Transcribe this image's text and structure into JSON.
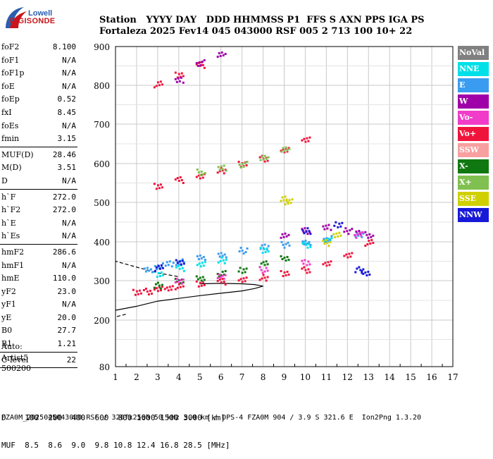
{
  "logo": {
    "brand_top": "Lowell",
    "brand_bottom": "DIGISONDE",
    "colors": {
      "blue": "#2b5fae",
      "red": "#c9141b"
    }
  },
  "header": {
    "labels": "Station   YYYY DAY   DDD HHMMSS P1  FFS S AXN PPS IGA PS",
    "values": "Fortaleza 2025 Fev14 045 043000 RSF 005 2 713 100 10+ 22"
  },
  "params": [
    {
      "name": "foF2",
      "value": "8.100"
    },
    {
      "name": "foF1",
      "value": "N/A"
    },
    {
      "name": "foF1p",
      "value": "N/A"
    },
    {
      "name": "foE",
      "value": "N/A"
    },
    {
      "name": "foEp",
      "value": "0.52"
    },
    {
      "name": "fxI",
      "value": "8.45"
    },
    {
      "name": "foEs",
      "value": "N/A"
    },
    {
      "name": "fmin",
      "value": "3.15"
    },
    {
      "sep": true
    },
    {
      "name": "MUF(D)",
      "value": "28.46"
    },
    {
      "name": "M(D)",
      "value": "3.51"
    },
    {
      "name": "D",
      "value": "N/A"
    },
    {
      "sep": true
    },
    {
      "name": "h`F",
      "value": "272.0"
    },
    {
      "name": "h`F2",
      "value": "272.0"
    },
    {
      "name": "h`E",
      "value": "N/A"
    },
    {
      "name": "h`Es",
      "value": "N/A"
    },
    {
      "sep": true
    },
    {
      "name": "hmF2",
      "value": "286.6"
    },
    {
      "name": "hmF1",
      "value": "N/A"
    },
    {
      "name": "hmE",
      "value": "110.0"
    },
    {
      "name": "yF2",
      "value": "23.0"
    },
    {
      "name": "yF1",
      "value": "N/A"
    },
    {
      "name": "yE",
      "value": "20.0"
    },
    {
      "name": "B0",
      "value": "27.7"
    },
    {
      "name": "B1",
      "value": "1.21"
    },
    {
      "sep": true
    },
    {
      "name": "C-level",
      "value": "22"
    },
    {
      "sep": true
    }
  ],
  "autoscaling": {
    "line1": "Auto:",
    "line2": "Artist5",
    "line3": "500200"
  },
  "legend": [
    {
      "label": "NoVal",
      "color": "#808080"
    },
    {
      "label": "NNE",
      "color": "#00e0e8"
    },
    {
      "label": "E",
      "color": "#3a9cf0"
    },
    {
      "label": "W",
      "color": "#a000a8"
    },
    {
      "label": "Vo-",
      "color": "#f03cc8"
    },
    {
      "label": "Vo+",
      "color": "#f0143c"
    },
    {
      "label": "SSW",
      "color": "#f8a0a0"
    },
    {
      "label": "X-",
      "color": "#107810"
    },
    {
      "label": "X+",
      "color": "#80c050"
    },
    {
      "label": "SSE",
      "color": "#d0d000"
    },
    {
      "label": "NNW",
      "color": "#1818d8"
    }
  ],
  "muf_table": {
    "line1": "D    100  200  400  600  800 1000 1500 3000 [km]",
    "line2": "MUF  8.5  8.6  9.0  9.8 10.8 12.4 16.8 28.5 [MHz]"
  },
  "footer": "FZA0M_2025045043000.RSF / 320fx256h 50 kHz 5.0 km / DPS-4 FZA0M 904 / 3.9 S 321.6 E  Ion2Png 1.3.20",
  "chart_data": {
    "type": "scatter",
    "x_ticks": [
      "1",
      "2",
      "3",
      "4",
      "5",
      "6",
      "7",
      "8",
      "9",
      "10",
      "11",
      "12",
      "13",
      "14",
      "15",
      "16",
      "17"
    ],
    "y_ticks": [
      "80",
      "200",
      "300",
      "400",
      "500",
      "600",
      "700",
      "800",
      "900"
    ],
    "xlim": [
      1,
      17
    ],
    "grid": true,
    "series": [
      {
        "color": "#f0143c",
        "points": [
          [
            2.0,
            272
          ],
          [
            2.5,
            275
          ],
          [
            3.0,
            280
          ],
          [
            3.5,
            285
          ],
          [
            4.0,
            288
          ],
          [
            5.0,
            295
          ],
          [
            6.0,
            300
          ],
          [
            7.0,
            305
          ],
          [
            8.0,
            310
          ],
          [
            9.0,
            320
          ],
          [
            10.0,
            330
          ],
          [
            11.0,
            345
          ],
          [
            12.0,
            370
          ],
          [
            13.0,
            400
          ],
          [
            3.0,
            545
          ],
          [
            4.0,
            560
          ],
          [
            5.0,
            570
          ],
          [
            6.0,
            585
          ],
          [
            7.0,
            600
          ],
          [
            8.0,
            615
          ],
          [
            9.0,
            635
          ],
          [
            10.0,
            665
          ],
          [
            3.0,
            805
          ],
          [
            4.0,
            830
          ],
          [
            5.0,
            855
          ]
        ]
      },
      {
        "color": "#3a9cf0",
        "points": [
          [
            2.5,
            330
          ],
          [
            3.0,
            340
          ],
          [
            3.5,
            345
          ],
          [
            4.0,
            350
          ],
          [
            5.0,
            360
          ],
          [
            6.0,
            370
          ],
          [
            7.0,
            380
          ],
          [
            8.0,
            390
          ],
          [
            9.0,
            395
          ],
          [
            10.0,
            400
          ],
          [
            11.0,
            410
          ],
          [
            12.5,
            420
          ]
        ]
      },
      {
        "color": "#00e0e8",
        "points": [
          [
            3.0,
            320
          ],
          [
            4.0,
            335
          ],
          [
            5.0,
            345
          ],
          [
            6.0,
            355
          ],
          [
            8.0,
            380
          ],
          [
            10.0,
            395
          ],
          [
            11.0,
            405
          ]
        ]
      },
      {
        "color": "#a000a8",
        "points": [
          [
            9.0,
            420
          ],
          [
            10.0,
            430
          ],
          [
            11.0,
            440
          ],
          [
            12.0,
            430
          ],
          [
            12.5,
            425
          ],
          [
            13.0,
            420
          ],
          [
            4.0,
            815
          ],
          [
            5.0,
            860
          ],
          [
            6.0,
            880
          ]
        ]
      },
      {
        "color": "#107810",
        "points": [
          [
            3.0,
            290
          ],
          [
            4.0,
            300
          ],
          [
            5.0,
            310
          ],
          [
            6.0,
            320
          ],
          [
            7.0,
            330
          ],
          [
            8.0,
            345
          ],
          [
            9.0,
            360
          ]
        ]
      },
      {
        "color": "#80c050",
        "points": [
          [
            5.0,
            580
          ],
          [
            6.0,
            590
          ],
          [
            7.0,
            600
          ],
          [
            8.0,
            615
          ],
          [
            9.0,
            640
          ]
        ]
      },
      {
        "color": "#1818d8",
        "points": [
          [
            3.0,
            335
          ],
          [
            4.0,
            350
          ],
          [
            10.0,
            430
          ],
          [
            11.5,
            445
          ],
          [
            12.5,
            330
          ],
          [
            12.8,
            320
          ]
        ]
      },
      {
        "color": "#d0d000",
        "points": [
          [
            9.0,
            510
          ],
          [
            9.2,
            505
          ],
          [
            11.0,
            400
          ],
          [
            11.5,
            420
          ]
        ]
      },
      {
        "color": "#f03cc8",
        "points": [
          [
            4.0,
            300
          ],
          [
            6.0,
            315
          ],
          [
            8.0,
            330
          ],
          [
            10.0,
            350
          ],
          [
            12.5,
            420
          ]
        ]
      }
    ],
    "profile_solid": [
      [
        0.0,
        215
      ],
      [
        1.0,
        225
      ],
      [
        2.0,
        235
      ],
      [
        3.0,
        248
      ],
      [
        4.0,
        255
      ],
      [
        5.0,
        262
      ],
      [
        6.0,
        268
      ],
      [
        7.0,
        274
      ],
      [
        7.6,
        280
      ],
      [
        8.0,
        286
      ],
      [
        7.6,
        290
      ],
      [
        7.0,
        292
      ],
      [
        6.0,
        293
      ],
      [
        5.0,
        292
      ]
    ],
    "profile_dashed_lower": [
      [
        -1.0,
        180
      ],
      [
        0.0,
        195
      ],
      [
        1.0,
        208
      ],
      [
        1.5,
        215
      ]
    ],
    "profile_dashed_upper": [
      [
        -1.0,
        400
      ],
      [
        0.0,
        375
      ],
      [
        1.0,
        350
      ],
      [
        2.0,
        335
      ],
      [
        3.0,
        320
      ],
      [
        4.0,
        310
      ]
    ]
  }
}
